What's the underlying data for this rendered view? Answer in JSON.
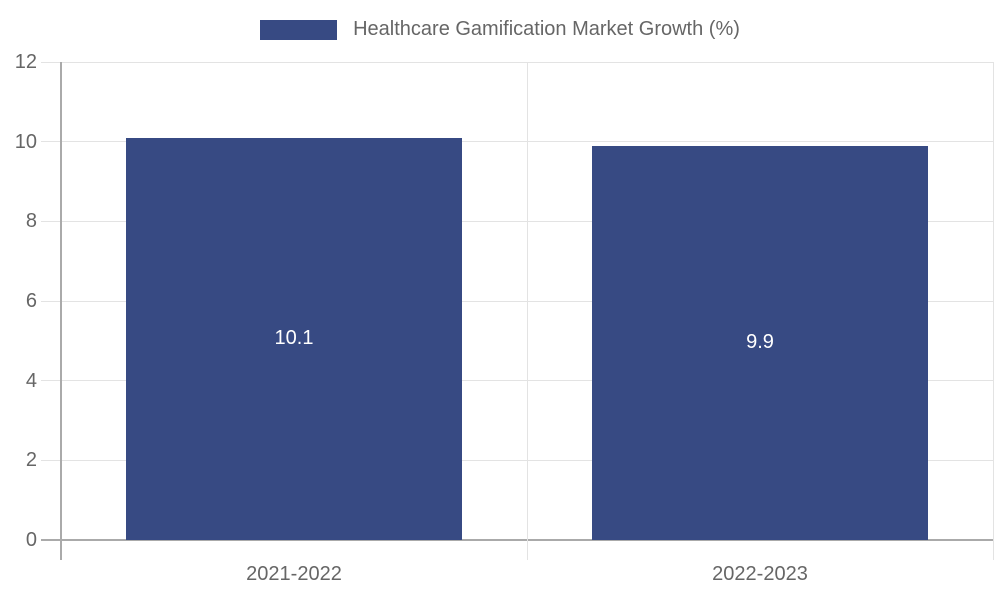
{
  "legend": {
    "label": "Healthcare Gamification Market Growth (%)"
  },
  "colors": {
    "bar": "#374a83",
    "grid": "#e3e3e3",
    "axis": "#aaaaaa",
    "text": "#666666",
    "bar_label": "#ffffff",
    "background": "#ffffff"
  },
  "chart_data": {
    "type": "bar",
    "categories": [
      "2021-2022",
      "2022-2023"
    ],
    "values": [
      10.1,
      9.9
    ],
    "bar_labels": [
      "10.1",
      "9.9"
    ],
    "series_name": "Healthcare Gamification Market Growth (%)",
    "title": "",
    "xlabel": "",
    "ylabel": "",
    "ylim": [
      0,
      12
    ],
    "yticks": [
      0,
      2,
      4,
      6,
      8,
      10,
      12
    ],
    "grid": true,
    "legend_position": "top-center",
    "bar_label_position": "center"
  }
}
